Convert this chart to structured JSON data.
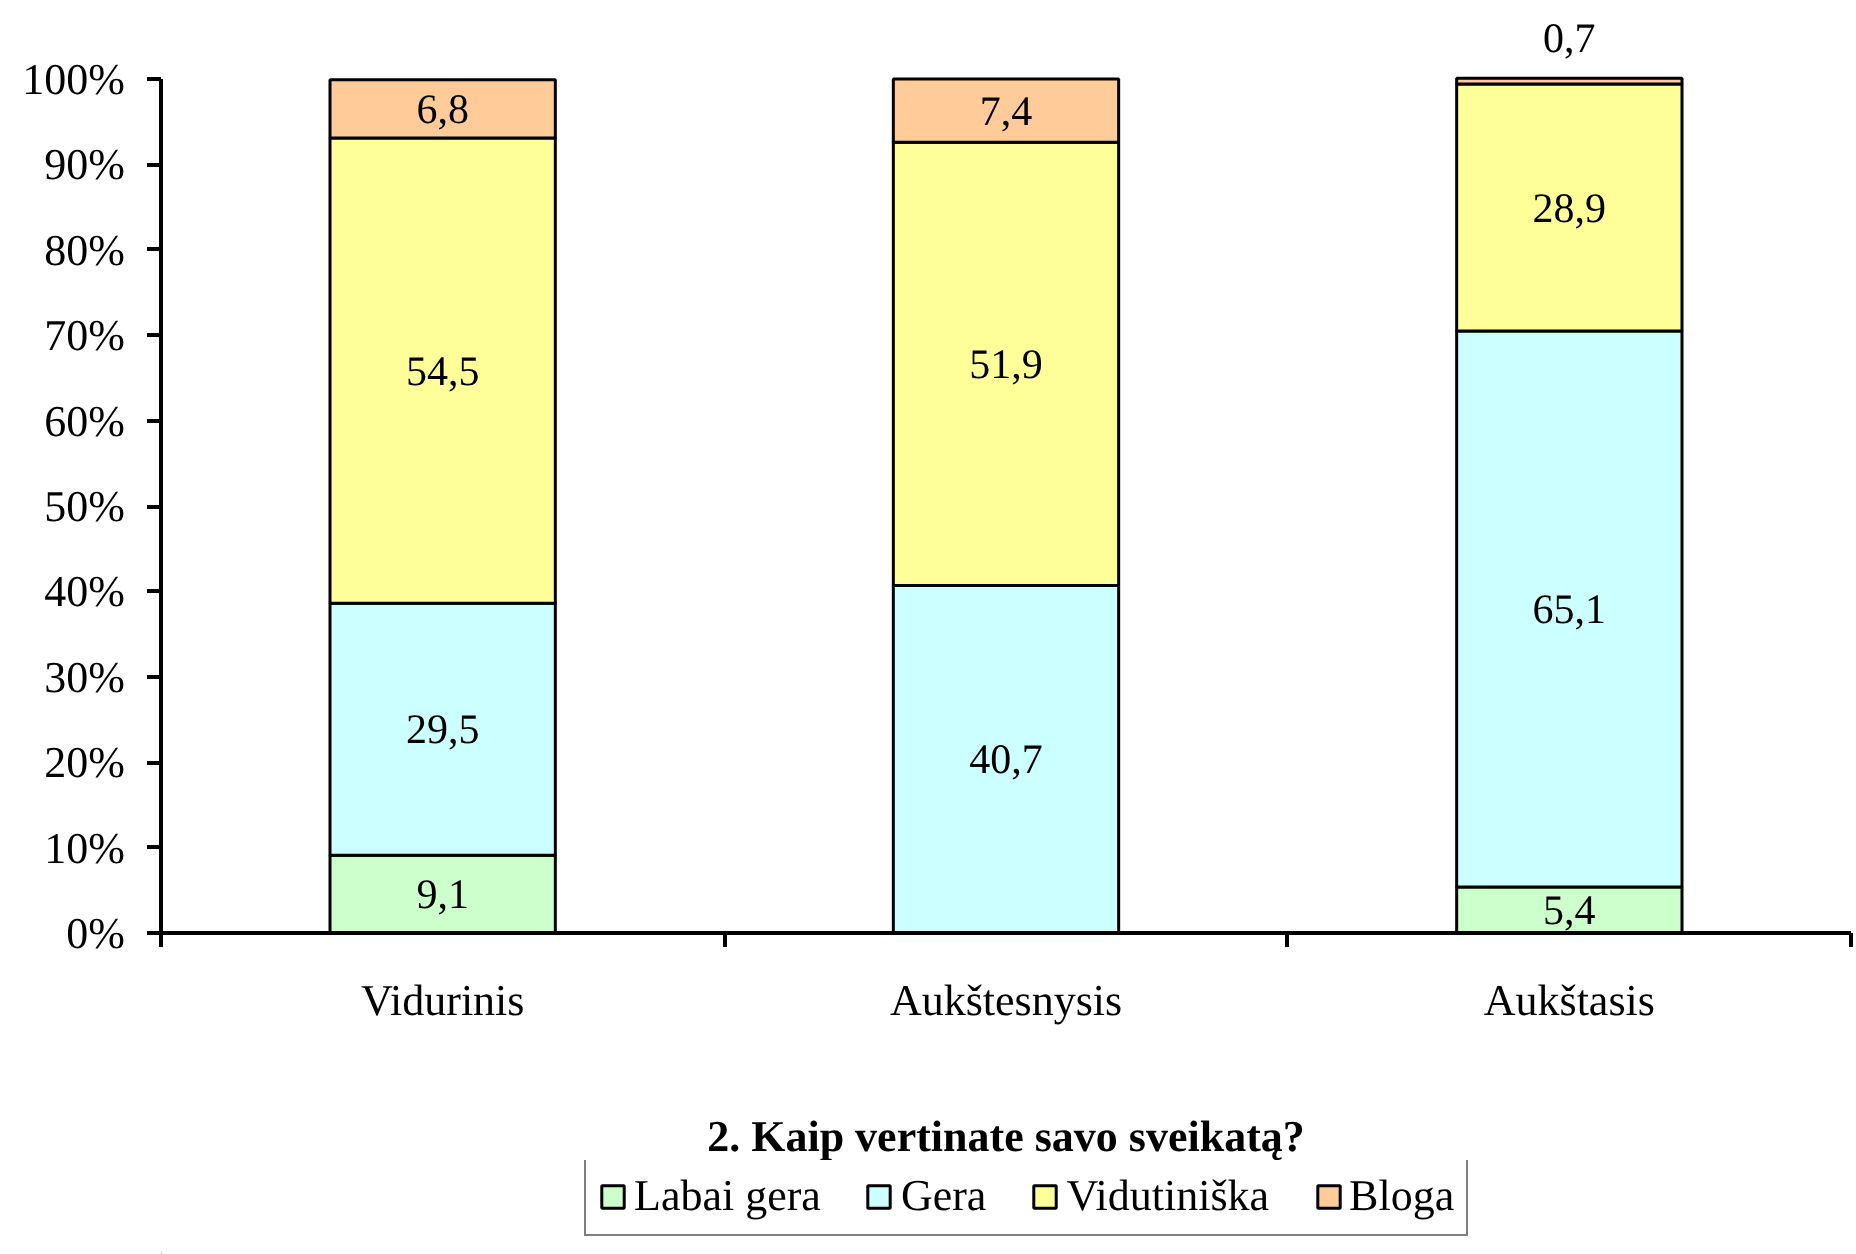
{
  "chart_data": {
    "type": "bar",
    "stacked": true,
    "title": "2. Kaip vertinate savo sveikatą?",
    "categories": [
      "Vidurinis",
      "Aukštesnysis",
      "Aukštasis"
    ],
    "series": [
      {
        "name": "Labai gera",
        "color": "#ccffcc",
        "values": [
          9.1,
          null,
          5.4
        ],
        "value_labels": [
          "9,1",
          null,
          "5,4"
        ]
      },
      {
        "name": "Gera",
        "color": "#ccffff",
        "values": [
          29.5,
          40.7,
          65.1
        ],
        "value_labels": [
          "29,5",
          "40,7",
          "65,1"
        ]
      },
      {
        "name": "Vidutiniška",
        "color": "#ffff99",
        "values": [
          54.5,
          51.9,
          28.9
        ],
        "value_labels": [
          "54,5",
          "51,9",
          "28,9"
        ]
      },
      {
        "name": "Bloga",
        "color": "#ffcc99",
        "values": [
          6.8,
          7.4,
          0.7
        ],
        "value_labels": [
          "6,8",
          "7,4",
          "0,7"
        ]
      }
    ],
    "ylim": [
      0,
      100
    ],
    "yticks": [
      {
        "value": 0,
        "label": "0%"
      },
      {
        "value": 10,
        "label": "10%"
      },
      {
        "value": 20,
        "label": "20%"
      },
      {
        "value": 30,
        "label": "30%"
      },
      {
        "value": 40,
        "label": "40%"
      },
      {
        "value": 50,
        "label": "50%"
      },
      {
        "value": 60,
        "label": "60%"
      },
      {
        "value": 70,
        "label": "70%"
      },
      {
        "value": 80,
        "label": "80%"
      },
      {
        "value": 90,
        "label": "90%"
      },
      {
        "value": 100,
        "label": "100%"
      }
    ],
    "grid": false,
    "legend": "bottom"
  }
}
